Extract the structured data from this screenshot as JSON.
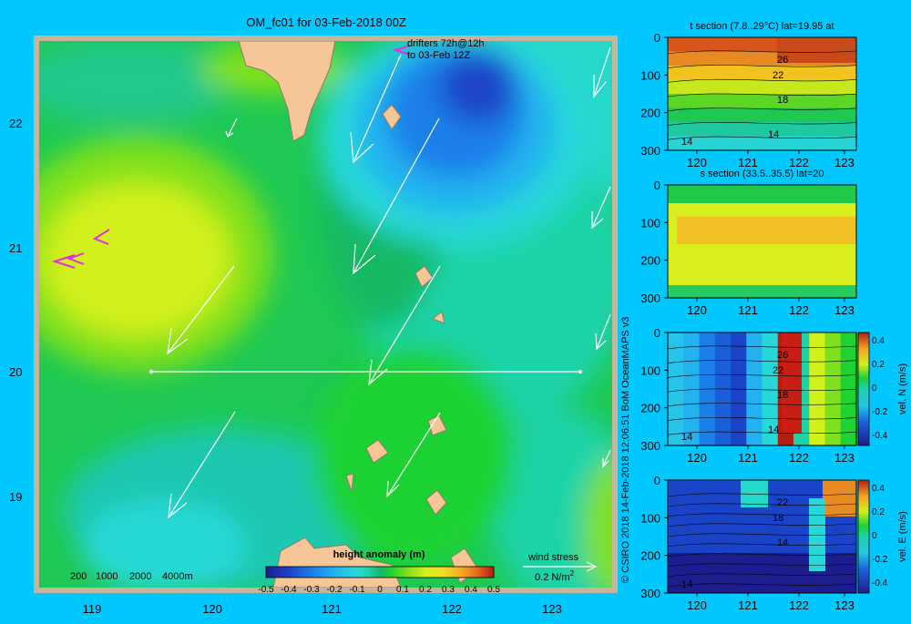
{
  "colors": {
    "background": "#00c8ff",
    "map_frame": "#c8b49b",
    "land": "#f7c697",
    "colorbar": [
      "#1d1d8f",
      "#1a44c7",
      "#1a7fe8",
      "#23b2f0",
      "#26d8d8",
      "#1ed3a8",
      "#19b46b",
      "#1ed233",
      "#7fe01f",
      "#d2f01a",
      "#f0e020",
      "#f2a826",
      "#e8641e",
      "#b01f14"
    ]
  },
  "map": {
    "title": "OM_fc01 for 03-Feb-2018 00Z",
    "drifters_label": "drifters 72h@12h",
    "drifters_label_2": "to 03-Feb 12Z",
    "y_ticks": [
      "22",
      "21",
      "20",
      "19"
    ],
    "x_ticks": [
      "119",
      "120",
      "121",
      "122",
      "123"
    ],
    "depth_legend": [
      "200",
      "1000",
      "2000",
      "4000m"
    ],
    "colorbar_title": "height anomaly (m)",
    "colorbar_ticks": [
      "-0.5",
      "-0.4",
      "-0.3",
      "-0.2",
      "-0.1",
      "0",
      "0.1",
      "0.2",
      "0.3",
      "0.4",
      "0.5"
    ],
    "wind_label": "wind stress",
    "wind_unit": "0.2 N/m",
    "wind_unit_sup": "2"
  },
  "credit": "© CSIRO 2018   14-Feb-2018 12:06:51 BoM OceanMAPS v3",
  "panels": [
    {
      "title": "t section (7.8..29°C) lat=19.95 at",
      "y_ticks": [
        "0",
        "100",
        "200",
        "300"
      ],
      "x_ticks": [
        "120",
        "121",
        "122",
        "123"
      ],
      "contour_labels": [
        "26",
        "22",
        "18",
        "14",
        "14"
      ],
      "side_label": "",
      "bar_ticks": []
    },
    {
      "title": "s section (33.5..35.5) lat=20",
      "y_ticks": [
        "0",
        "100",
        "200",
        "300"
      ],
      "x_ticks": [
        "120",
        "121",
        "122",
        "123"
      ],
      "contour_labels": [],
      "side_label": "",
      "bar_ticks": []
    },
    {
      "title": "",
      "y_ticks": [
        "0",
        "100",
        "200",
        "300"
      ],
      "x_ticks": [
        "120",
        "121",
        "122",
        "123"
      ],
      "contour_labels": [
        "26",
        "22",
        "18",
        "14",
        "14"
      ],
      "side_label": "vel. N (m/s)",
      "bar_ticks": [
        "0.4",
        "0.2",
        "0",
        "-0.2",
        "-0.4"
      ]
    },
    {
      "title": "",
      "y_ticks": [
        "0",
        "100",
        "200",
        "300"
      ],
      "x_ticks": [
        "120",
        "121",
        "122",
        "123"
      ],
      "contour_labels": [
        "22",
        "18",
        "14",
        "14"
      ],
      "side_label": "vel. E (m/s)",
      "bar_ticks": [
        "0.4",
        "0.2",
        "0",
        "-0.2",
        "-0.4"
      ]
    }
  ],
  "chart_data": [
    {
      "type": "heatmap",
      "title": "OM_fc01 for 03-Feb-2018 00Z",
      "xlabel": "",
      "ylabel": "",
      "xlim": [
        118.5,
        123.5
      ],
      "ylim": [
        18.3,
        22.7
      ],
      "x_ticks": [
        119,
        120,
        121,
        122,
        123
      ],
      "y_ticks": [
        19,
        20,
        21,
        22
      ],
      "colorbar": {
        "label": "height anomaly (m)",
        "range": [
          -0.5,
          0.5
        ]
      },
      "legend": [
        "200",
        "1000",
        "2000",
        "4000m"
      ],
      "section_line_lat": 20
    },
    {
      "type": "heatmap",
      "title": "t section (7.8..29°C) lat=19.95 at",
      "xlim": [
        119.5,
        123.2
      ],
      "ylim": [
        300,
        0
      ],
      "contours": [
        26,
        22,
        18,
        14
      ]
    },
    {
      "type": "heatmap",
      "title": "s section (33.5..35.5) lat=20",
      "xlim": [
        119.5,
        123.2
      ],
      "ylim": [
        300,
        0
      ]
    },
    {
      "type": "heatmap",
      "title": "",
      "xlim": [
        119.5,
        123.2
      ],
      "ylim": [
        300,
        0
      ],
      "colorbar": {
        "label": "vel. N (m/s)",
        "range": [
          -0.4,
          0.4
        ]
      }
    },
    {
      "type": "heatmap",
      "title": "",
      "xlim": [
        119.5,
        123.2
      ],
      "ylim": [
        300,
        0
      ],
      "colorbar": {
        "label": "vel. E (m/s)",
        "range": [
          -0.4,
          0.4
        ]
      }
    }
  ]
}
